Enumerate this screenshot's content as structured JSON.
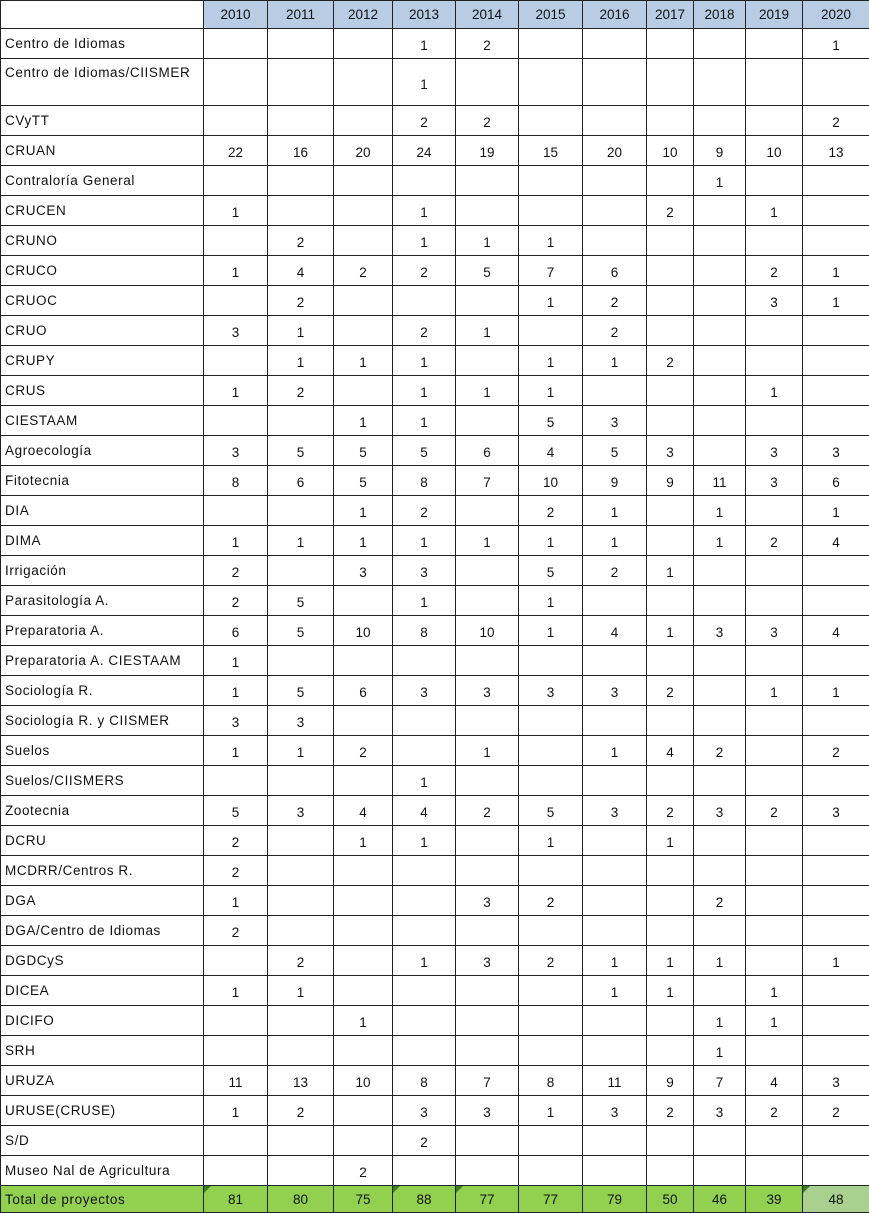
{
  "years": [
    "2010",
    "2011",
    "2012",
    "2013",
    "2014",
    "2015",
    "2016",
    "2017",
    "2018",
    "2019",
    "2020"
  ],
  "rows": [
    {
      "label": "Centro de Idiomas",
      "v": [
        "",
        "",
        "",
        "1",
        "2",
        "",
        "",
        "",
        "",
        "",
        "1"
      ]
    },
    {
      "label": "Centro de Idiomas/CIISMER",
      "v": [
        "",
        "",
        "",
        "1",
        "",
        "",
        "",
        "",
        "",
        "",
        ""
      ]
    },
    {
      "label": "CVyTT",
      "v": [
        "",
        "",
        "",
        "2",
        "2",
        "",
        "",
        "",
        "",
        "",
        "2"
      ]
    },
    {
      "label": "CRUAN",
      "v": [
        "22",
        "16",
        "20",
        "24",
        "19",
        "15",
        "20",
        "10",
        "9",
        "10",
        "13"
      ]
    },
    {
      "label": "Contraloría General",
      "v": [
        "",
        "",
        "",
        "",
        "",
        "",
        "",
        "",
        "1",
        "",
        ""
      ]
    },
    {
      "label": "CRUCEN",
      "v": [
        "1",
        "",
        "",
        "1",
        "",
        "",
        "",
        "2",
        "",
        "1",
        ""
      ]
    },
    {
      "label": "CRUNO",
      "v": [
        "",
        "2",
        "",
        "1",
        "1",
        "1",
        "",
        "",
        "",
        "",
        ""
      ]
    },
    {
      "label": "CRUCO",
      "v": [
        "1",
        "4",
        "2",
        "2",
        "5",
        "7",
        "6",
        "",
        "",
        "2",
        "1"
      ]
    },
    {
      "label": "CRUOC",
      "v": [
        "",
        "2",
        "",
        "",
        "",
        "1",
        "2",
        "",
        "",
        "3",
        "1"
      ]
    },
    {
      "label": "CRUO",
      "v": [
        "3",
        "1",
        "",
        "2",
        "1",
        "",
        "2",
        "",
        "",
        "",
        ""
      ]
    },
    {
      "label": "CRUPY",
      "v": [
        "",
        "1",
        "1",
        "1",
        "",
        "1",
        "1",
        "2",
        "",
        "",
        ""
      ]
    },
    {
      "label": "CRUS",
      "v": [
        "1",
        "2",
        "",
        "1",
        "1",
        "1",
        "",
        "",
        "",
        "1",
        ""
      ]
    },
    {
      "label": "CIESTAAM",
      "v": [
        "",
        "",
        "1",
        "1",
        "",
        "5",
        "3",
        "",
        "",
        "",
        ""
      ]
    },
    {
      "label": "Agroecología",
      "v": [
        "3",
        "5",
        "5",
        "5",
        "6",
        "4",
        "5",
        "3",
        "",
        "3",
        "3"
      ]
    },
    {
      "label": "Fitotecnia",
      "v": [
        "8",
        "6",
        "5",
        "8",
        "7",
        "10",
        "9",
        "9",
        "11",
        "3",
        "6"
      ]
    },
    {
      "label": "DIA",
      "v": [
        "",
        "",
        "1",
        "2",
        "",
        "2",
        "1",
        "",
        "1",
        "",
        "1"
      ]
    },
    {
      "label": "DIMA",
      "v": [
        "1",
        "1",
        "1",
        "1",
        "1",
        "1",
        "1",
        "",
        "1",
        "2",
        "4"
      ]
    },
    {
      "label": "Irrigación",
      "v": [
        "2",
        "",
        "3",
        "3",
        "",
        "5",
        "2",
        "1",
        "",
        "",
        ""
      ]
    },
    {
      "label": "Parasitología A.",
      "v": [
        "2",
        "5",
        "",
        "1",
        "",
        "1",
        "",
        "",
        "",
        "",
        ""
      ]
    },
    {
      "label": "Preparatoria A.",
      "v": [
        "6",
        "5",
        "10",
        "8",
        "10",
        "1",
        "4",
        "1",
        "3",
        "3",
        "4"
      ]
    },
    {
      "label": "Preparatoria A. CIESTAAM",
      "v": [
        "1",
        "",
        "",
        "",
        "",
        "",
        "",
        "",
        "",
        "",
        ""
      ]
    },
    {
      "label": "Sociología R.",
      "v": [
        "1",
        "5",
        "6",
        "3",
        "3",
        "3",
        "3",
        "2",
        "",
        "1",
        "1"
      ]
    },
    {
      "label": "Sociología R. y CIISMER",
      "v": [
        "3",
        "3",
        "",
        "",
        "",
        "",
        "",
        "",
        "",
        "",
        ""
      ]
    },
    {
      "label": "Suelos",
      "v": [
        "1",
        "1",
        "2",
        "",
        "1",
        "",
        "1",
        "4",
        "2",
        "",
        "2"
      ]
    },
    {
      "label": "Suelos/CIISMERS",
      "v": [
        "",
        "",
        "",
        "1",
        "",
        "",
        "",
        "",
        "",
        "",
        ""
      ]
    },
    {
      "label": "Zootecnia",
      "v": [
        "5",
        "3",
        "4",
        "4",
        "2",
        "5",
        "3",
        "2",
        "3",
        "2",
        "3"
      ]
    },
    {
      "label": "DCRU",
      "v": [
        "2",
        "",
        "1",
        "1",
        "",
        "1",
        "",
        "1",
        "",
        "",
        ""
      ]
    },
    {
      "label": "MCDRR/Centros R.",
      "v": [
        "2",
        "",
        "",
        "",
        "",
        "",
        "",
        "",
        "",
        "",
        ""
      ]
    },
    {
      "label": "DGA",
      "v": [
        "1",
        "",
        "",
        "",
        "3",
        "2",
        "",
        "",
        "2",
        "",
        ""
      ]
    },
    {
      "label": "DGA/Centro de Idiomas",
      "v": [
        "2",
        "",
        "",
        "",
        "",
        "",
        "",
        "",
        "",
        "",
        ""
      ]
    },
    {
      "label": "DGDCyS",
      "v": [
        "",
        "2",
        "",
        "1",
        "3",
        "2",
        "1",
        "1",
        "1",
        "",
        "1"
      ]
    },
    {
      "label": "DICEA",
      "v": [
        "1",
        "1",
        "",
        "",
        "",
        "",
        "1",
        "1",
        "",
        "1",
        ""
      ]
    },
    {
      "label": "DICIFO",
      "v": [
        "",
        "",
        "1",
        "",
        "",
        "",
        "",
        "",
        "1",
        "1",
        ""
      ]
    },
    {
      "label": "SRH",
      "v": [
        "",
        "",
        "",
        "",
        "",
        "",
        "",
        "",
        "1",
        "",
        ""
      ]
    },
    {
      "label": "URUZA",
      "v": [
        "11",
        "13",
        "10",
        "8",
        "7",
        "8",
        "11",
        "9",
        "7",
        "4",
        "3"
      ]
    },
    {
      "label": "URUSE(CRUSE)",
      "v": [
        "1",
        "2",
        "",
        "3",
        "3",
        "1",
        "3",
        "2",
        "3",
        "2",
        "2"
      ]
    },
    {
      "label": "S/D",
      "v": [
        "",
        "",
        "",
        "2",
        "",
        "",
        "",
        "",
        "",
        "",
        ""
      ]
    },
    {
      "label": "Museo Nal de Agricultura",
      "v": [
        "",
        "",
        "2",
        "",
        "",
        "",
        "",
        "",
        "",
        "",
        ""
      ]
    }
  ],
  "total": {
    "label": "Total de proyectos",
    "v": [
      "81",
      "80",
      "75",
      "88",
      "77",
      "77",
      "79",
      "50",
      "46",
      "39",
      "48"
    ]
  },
  "colors": {
    "header_fill": "#b8cce4",
    "total_fill": "#92d050",
    "total_last_fill": "#a9d08e"
  }
}
